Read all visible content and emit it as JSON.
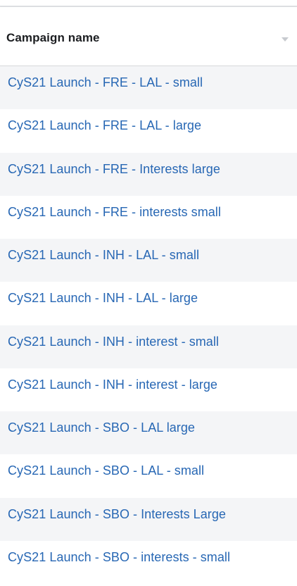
{
  "table": {
    "column_header": "Campaign name",
    "sort_icon": "chevron-down-icon",
    "rows": [
      {
        "name": "CyS21 Launch - FRE - LAL - small"
      },
      {
        "name": "CyS21 Launch - FRE - LAL - large"
      },
      {
        "name": "CyS21 Launch - FRE - Interests large"
      },
      {
        "name": "CyS21 Launch - FRE - interests small"
      },
      {
        "name": "CyS21 Launch - INH - LAL - small"
      },
      {
        "name": "CyS21 Launch - INH - LAL - large"
      },
      {
        "name": "CyS21 Launch - INH - interest - small"
      },
      {
        "name": "CyS21 Launch - INH - interest - large"
      },
      {
        "name": "CyS21 Launch - SBO - LAL large"
      },
      {
        "name": "CyS21 Launch - SBO - LAL - small"
      },
      {
        "name": "CyS21 Launch - SBO - Interests Large"
      },
      {
        "name": "CyS21 Launch - SBO - interests - small"
      }
    ]
  },
  "colors": {
    "link": "#2767b4",
    "row_alt": "#f4f5f7",
    "header_text": "#1c1e21"
  }
}
